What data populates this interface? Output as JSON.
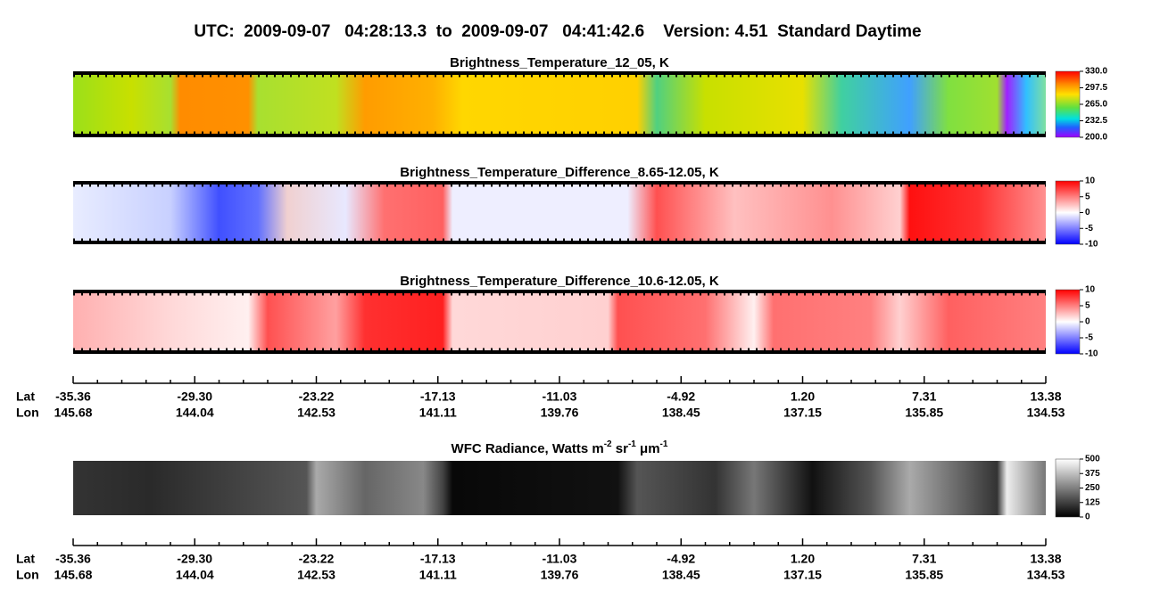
{
  "title": "UTC:  2009-09-07   04:28:13.3  to  2009-09-07   04:41:42.6    Version: 4.51  Standard Daytime",
  "panels": [
    {
      "title": "Brightness_Temperature_12_05, K",
      "colorbar_labels": [
        "330.0",
        "297.5",
        "265.0",
        "232.5",
        "200.0"
      ]
    },
    {
      "title": "Brightness_Temperature_Difference_8.65-12.05, K",
      "colorbar_labels": [
        "10",
        "5",
        "0",
        "-5",
        "-10"
      ]
    },
    {
      "title": "Brightness_Temperature_Difference_10.6-12.05, K",
      "colorbar_labels": [
        "10",
        "5",
        "0",
        "-5",
        "-10"
      ]
    },
    {
      "title_parts": [
        "WFC Radiance, Watts m",
        "-2",
        " sr",
        "-1",
        " μm",
        "-1"
      ],
      "colorbar_labels": [
        "500",
        "375",
        "250",
        "125",
        "0"
      ]
    }
  ],
  "axes": [
    {
      "lat_label": "Lat",
      "lon_label": "Lon",
      "lat": [
        "-35.36",
        "-29.30",
        "-23.22",
        "-17.13",
        "-11.03",
        "-4.92",
        "1.20",
        "7.31",
        "13.38"
      ],
      "lon": [
        "145.68",
        "144.04",
        "142.53",
        "141.11",
        "139.76",
        "138.45",
        "137.15",
        "135.85",
        "134.53"
      ]
    },
    {
      "lat_label": "Lat",
      "lon_label": "Lon",
      "lat": [
        "-35.36",
        "-29.30",
        "-23.22",
        "-17.13",
        "-11.03",
        "-4.92",
        "1.20",
        "7.31",
        "13.38"
      ],
      "lon": [
        "145.68",
        "144.04",
        "142.53",
        "141.11",
        "139.76",
        "138.45",
        "137.15",
        "135.85",
        "134.53"
      ]
    }
  ]
}
